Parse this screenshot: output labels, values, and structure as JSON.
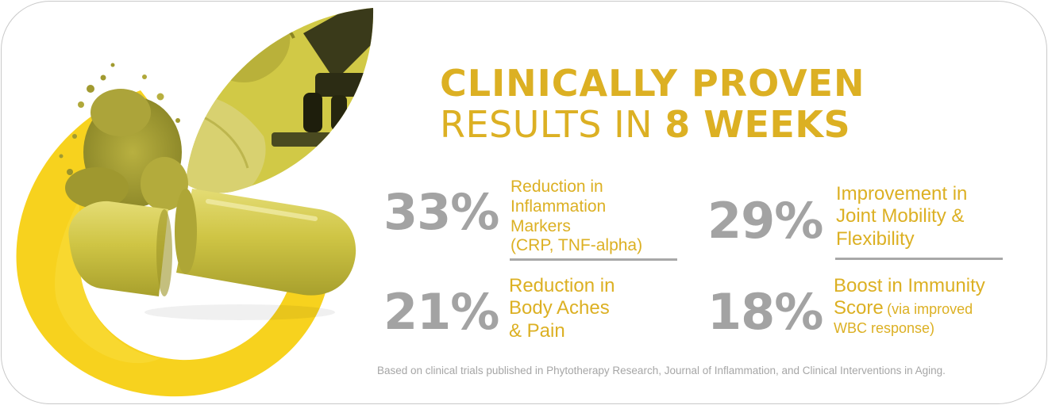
{
  "title": {
    "line1": "CLINICALLY PROVEN",
    "line2_prefix": "RESULTS IN ",
    "line2_emphasis": "8 WEEKS"
  },
  "stats": [
    {
      "percent": "33%",
      "lines": [
        "Reduction in",
        "Inflammation",
        "Markers",
        "(CRP, TNF-alpha)"
      ]
    },
    {
      "percent": "29%",
      "lines": [
        "Improvement in",
        "Joint Mobility &",
        "Flexibility"
      ]
    },
    {
      "percent": "21%",
      "lines": [
        "Reduction in",
        "Body Aches",
        "& Pain"
      ]
    },
    {
      "percent": "18%",
      "lines": [
        "Boost in Immunity",
        "Score",
        "(via improved",
        "WBC response)"
      ]
    }
  ],
  "footnote": "Based on clinical trials published in Phytotherapy Research, Journal of Inflammation, and Clinical Interventions in Aging.",
  "colors": {
    "accent_gold": "#dcb023",
    "brand_yellow": "#f7d21e",
    "percent_gray": "#a3a3a3",
    "capsule": "#c8bf3a",
    "border": "#c9c9c9"
  },
  "images": {
    "hero": "herbal-capsule-lab-image"
  }
}
